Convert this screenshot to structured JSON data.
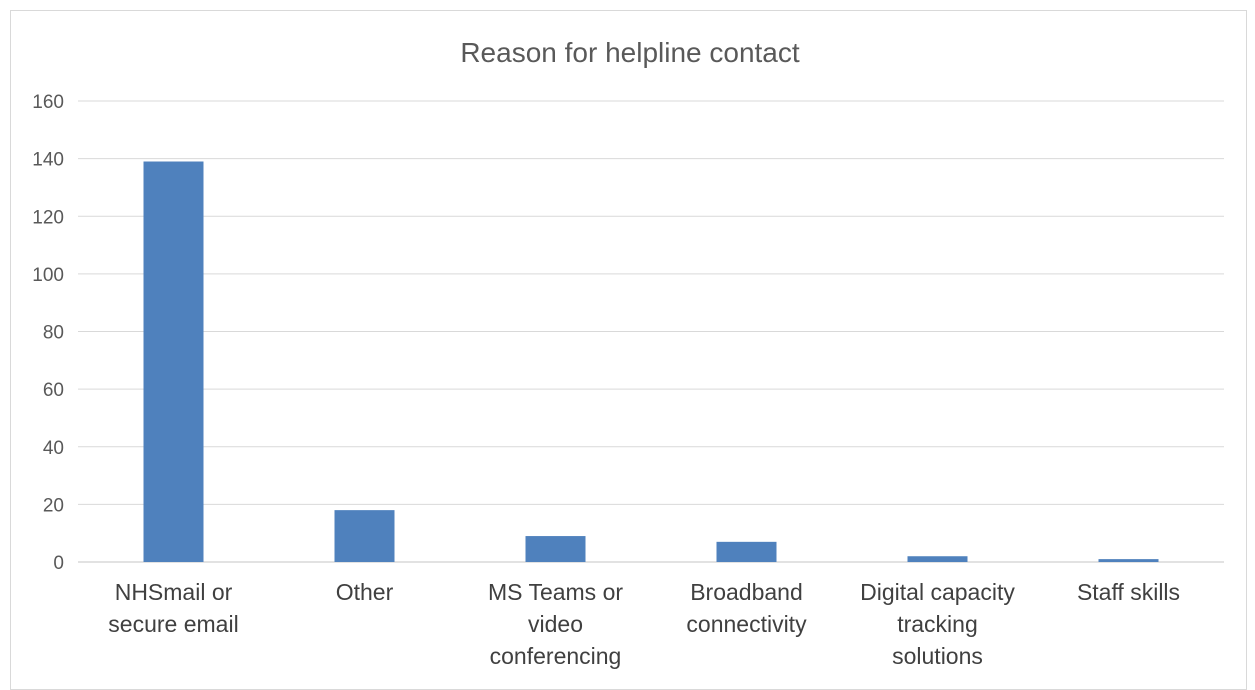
{
  "chart_data": {
    "type": "bar",
    "title": "Reason for helpline contact",
    "xlabel": "",
    "ylabel": "",
    "categories": [
      [
        "NHSmail or",
        "secure email"
      ],
      [
        "Other"
      ],
      [
        "MS Teams or",
        "video",
        "conferencing"
      ],
      [
        "Broadband",
        "connectivity"
      ],
      [
        "Digital capacity",
        "tracking",
        "solutions"
      ],
      [
        "Staff skills"
      ]
    ],
    "values": [
      139,
      18,
      9,
      7,
      2,
      1
    ],
    "ylim": [
      0,
      160
    ],
    "yticks": [
      0,
      20,
      40,
      60,
      80,
      100,
      120,
      140,
      160
    ],
    "grid": true,
    "legend": "none",
    "bar_color": "#4f81bd"
  }
}
